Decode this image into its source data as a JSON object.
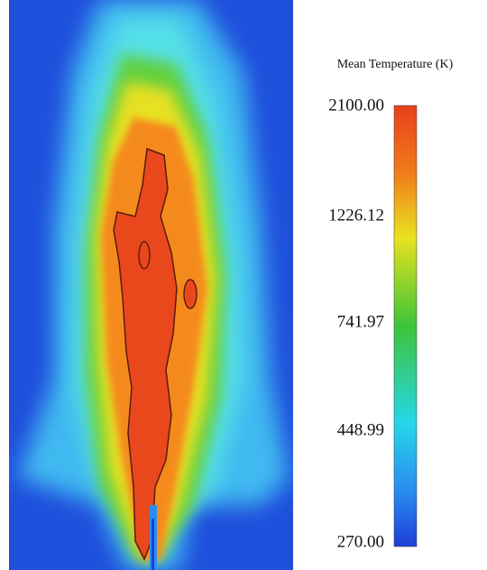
{
  "colorbar": {
    "title": "Mean Temperature (K)",
    "ticks": [
      "2100.00",
      "1226.12",
      "741.97",
      "448.99",
      "270.00"
    ]
  }
}
